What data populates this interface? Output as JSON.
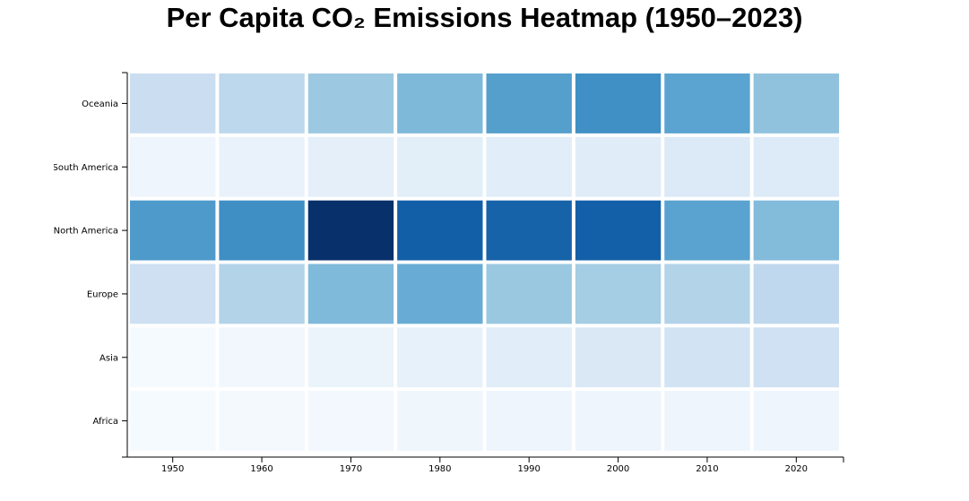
{
  "chart_data": {
    "type": "heatmap",
    "title": "Per Capita CO₂ Emissions Heatmap (1950–2023)",
    "xlabel": "",
    "ylabel": "",
    "x": [
      "1950",
      "1960",
      "1970",
      "1980",
      "1990",
      "2000",
      "2010",
      "2020"
    ],
    "y": [
      "Oceania",
      "South America",
      "North America",
      "Europe",
      "Asia",
      "Africa"
    ],
    "values": [
      [
        4.3,
        5.3,
        7.2,
        8.6,
        10.8,
        12.0,
        10.4,
        7.8
      ],
      [
        0.9,
        1.3,
        1.8,
        2.0,
        2.1,
        2.2,
        2.6,
        2.5
      ],
      [
        11.2,
        12.1,
        19.0,
        15.6,
        15.3,
        15.5,
        10.5,
        8.4
      ],
      [
        4.0,
        5.9,
        8.5,
        9.7,
        7.3,
        6.7,
        5.9,
        5.1
      ],
      [
        0.2,
        0.6,
        1.1,
        1.5,
        2.1,
        2.8,
        3.6,
        3.9
      ],
      [
        0.2,
        0.3,
        0.5,
        0.8,
        0.9,
        0.9,
        0.9,
        0.9
      ]
    ],
    "colorscale": "Blues",
    "vmin": 0,
    "vmax": 19.0,
    "grid": false,
    "legend": "none"
  }
}
